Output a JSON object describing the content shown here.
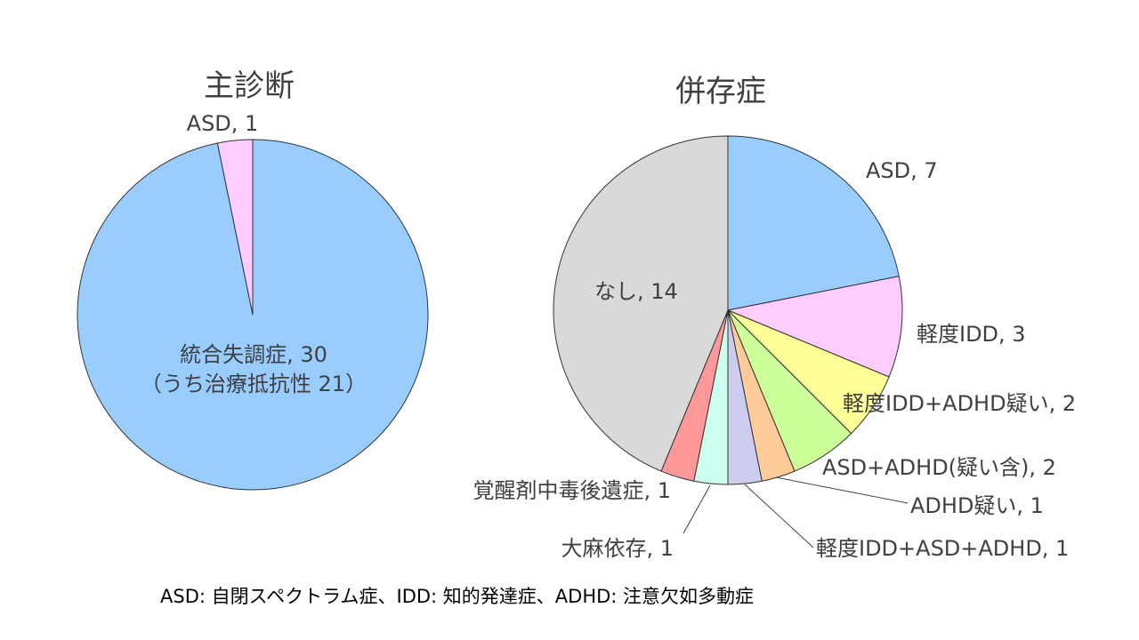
{
  "chart_data": [
    {
      "type": "pie",
      "title": "主診断",
      "slices": [
        {
          "label": "統合失調症, 30",
          "label_line2": "（うち治療抵抗性 21）",
          "value": 30,
          "color": "#99CCFF"
        },
        {
          "label": "ASD, 1",
          "value": 1,
          "color": "#FFCCFF"
        }
      ]
    },
    {
      "type": "pie",
      "title": "併存症",
      "slices": [
        {
          "label": "ASD, 7",
          "value": 7,
          "color": "#99CCFF"
        },
        {
          "label": "軽度IDD, 3",
          "value": 3,
          "color": "#FFCCFF"
        },
        {
          "label": "軽度IDD+ADHD疑い, 2",
          "value": 2,
          "color": "#FFFF99"
        },
        {
          "label": "ASD+ADHD(疑い含), 2",
          "value": 2,
          "color": "#CCFF99"
        },
        {
          "label": "ADHD疑い, 1",
          "value": 1,
          "color": "#FFCC99"
        },
        {
          "label": "軽度IDD+ASD+ADHD, 1",
          "value": 1,
          "color": "#CCCCEE"
        },
        {
          "label": "大麻依存, 1",
          "value": 1,
          "color": "#CCFFEE"
        },
        {
          "label": "覚醒剤中毒後遺症, 1",
          "value": 1,
          "color": "#FF9999"
        },
        {
          "label": "なし, 14",
          "value": 14,
          "color": "#D9D9D9"
        }
      ]
    }
  ],
  "footnote": "ASD: 自閉スペクトラム症、IDD: 知的発達症、ADHD: 注意欠如多動症"
}
